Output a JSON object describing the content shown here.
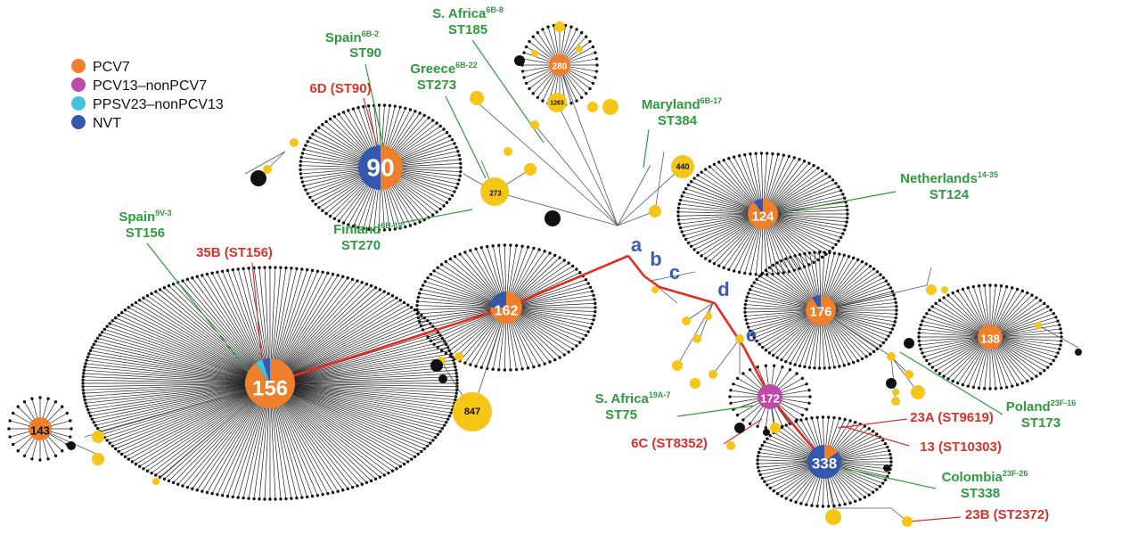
{
  "legend": [
    {
      "label": "PCV7",
      "color": "#f07f2c"
    },
    {
      "label": "PCV13–nonPCV7",
      "color": "#c04aa8"
    },
    {
      "label": "PPSV23–nonPCV13",
      "color": "#45c3dc"
    },
    {
      "label": "NVT",
      "color": "#3458b0"
    }
  ],
  "colors": {
    "pcv7": "#f07f2c",
    "pcv13": "#c04aa8",
    "ppsv23": "#45c3dc",
    "nvt": "#3458b0",
    "yellow_node": "#f5c518",
    "leaf": "#111111",
    "path": "#e52b20",
    "green_label": "#2e9a3c",
    "red_label": "#d8322a",
    "lineage_letter": "#3b5bb5"
  },
  "hubs": [
    {
      "id": "90",
      "label": "90",
      "nvt_fraction": 0.5,
      "pcv13_fraction": 0
    },
    {
      "id": "156",
      "label": "156",
      "nvt_fraction": 0.05,
      "pcv13_fraction": 0,
      "ppsv23_fraction": 0.05
    },
    {
      "id": "162",
      "label": "162",
      "nvt_fraction": 0.25,
      "pcv13_fraction": 0
    },
    {
      "id": "124",
      "label": "124",
      "nvt_fraction": 0.1,
      "pcv13_fraction": 0
    },
    {
      "id": "176",
      "label": "176",
      "nvt_fraction": 0.1,
      "pcv13_fraction": 0
    },
    {
      "id": "138",
      "label": "138",
      "nvt_fraction": 0,
      "pcv13_fraction": 0
    },
    {
      "id": "172",
      "label": "172",
      "nvt_fraction": 0,
      "pcv13_fraction": 1
    },
    {
      "id": "338",
      "label": "338",
      "nvt_fraction": 0.85,
      "pcv13_fraction": 0
    },
    {
      "id": "143",
      "label": "143",
      "nvt_fraction": 0,
      "pcv13_fraction": 0
    },
    {
      "id": "280",
      "label": "280",
      "nvt_fraction": 0,
      "pcv13_fraction": 0
    }
  ],
  "small_nodes": [
    "273",
    "1263",
    "440",
    "847"
  ],
  "lineage_letters": [
    "a",
    "b",
    "c",
    "d",
    "e"
  ],
  "green_labels": [
    {
      "place": "Spain",
      "sup": "6B-2",
      "st": "ST90"
    },
    {
      "place": "S. Africa",
      "sup": "6B-8",
      "st": "ST185"
    },
    {
      "place": "Greece",
      "sup": "6B-22",
      "st": "ST273"
    },
    {
      "place": "Maryland",
      "sup": "6B-17",
      "st": "ST384"
    },
    {
      "place": "Netherlands",
      "sup": "14-35",
      "st": "ST124"
    },
    {
      "place": "Finland",
      "sup": "6B-12",
      "st": "ST270"
    },
    {
      "place": "Spain",
      "sup": "9V-3",
      "st": "ST156"
    },
    {
      "place": "S. Africa",
      "sup": "19A-7",
      "st": "ST75"
    },
    {
      "place": "Poland",
      "sup": "23F-16",
      "st": "ST173"
    },
    {
      "place": "Colombia",
      "sup": "23F-26",
      "st": "ST338"
    }
  ],
  "red_labels": [
    "6D (ST90)",
    "35B (ST156)",
    "23A (ST9619)",
    "13 (ST10303)",
    "6C (ST8352)",
    "23B (ST2372)"
  ]
}
